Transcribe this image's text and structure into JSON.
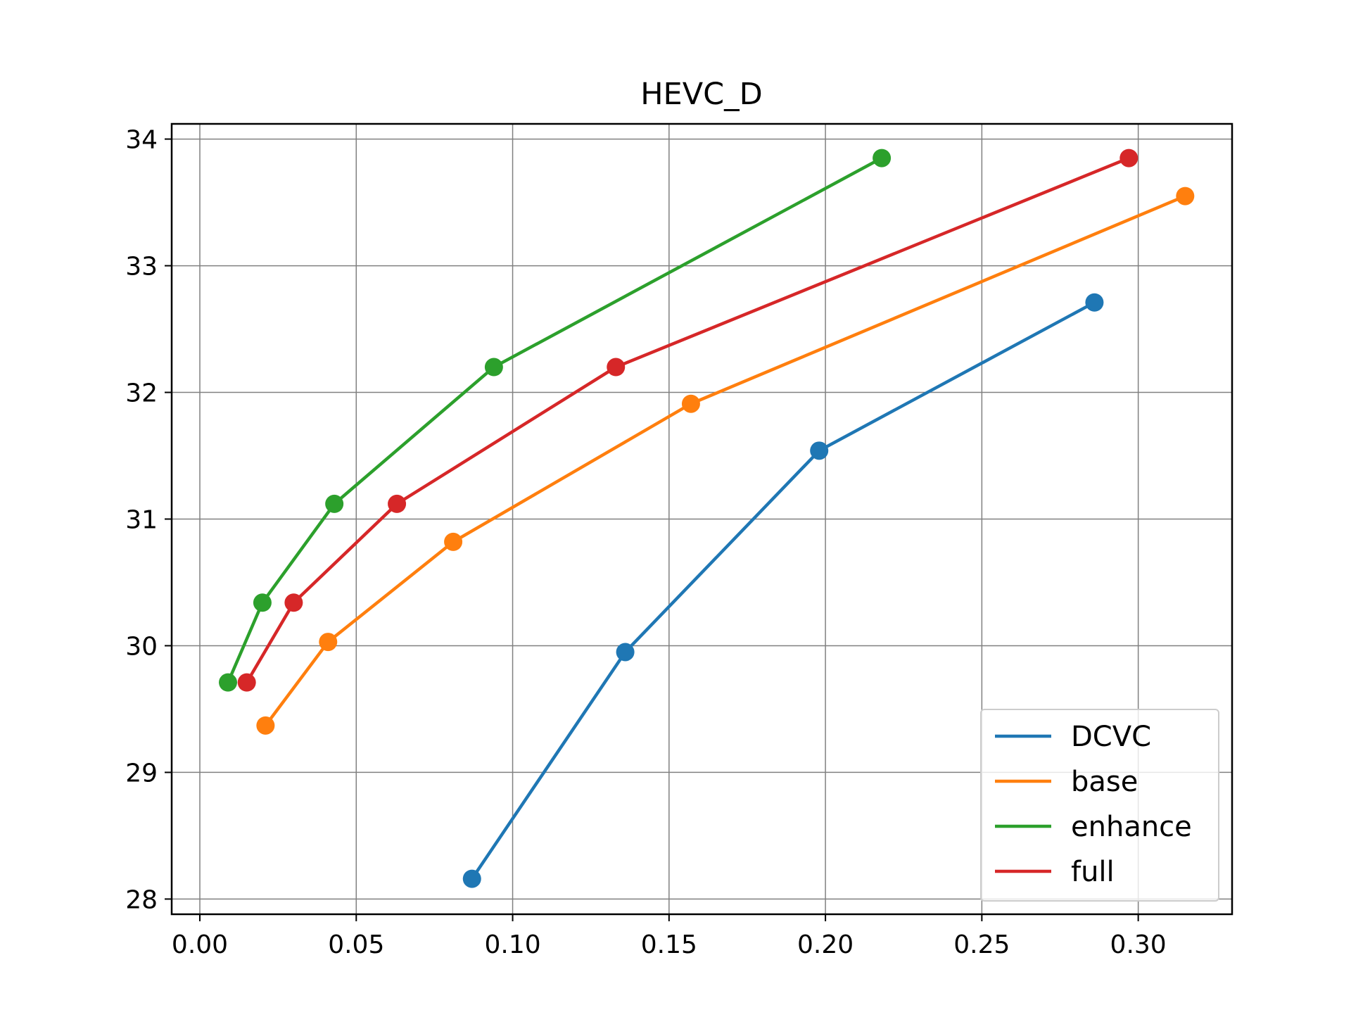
{
  "chart_data": {
    "type": "line",
    "title": "HEVC_D",
    "xlabel": "",
    "ylabel": "",
    "xlim": [
      -0.009,
      0.33
    ],
    "ylim": [
      27.88,
      34.12
    ],
    "xticks": [
      0.0,
      0.05,
      0.1,
      0.15,
      0.2,
      0.25,
      0.3
    ],
    "xtick_labels": [
      "0.00",
      "0.05",
      "0.10",
      "0.15",
      "0.20",
      "0.25",
      "0.30"
    ],
    "yticks": [
      28,
      29,
      30,
      31,
      32,
      33,
      34
    ],
    "ytick_labels": [
      "28",
      "29",
      "30",
      "31",
      "32",
      "33",
      "34"
    ],
    "grid": true,
    "legend_position": "lower-right",
    "series": [
      {
        "name": "DCVC",
        "color": "#1f77b4",
        "x": [
          0.087,
          0.136,
          0.198,
          0.286
        ],
        "y": [
          28.16,
          29.95,
          31.54,
          32.71
        ]
      },
      {
        "name": "base",
        "color": "#ff7f0e",
        "x": [
          0.021,
          0.041,
          0.081,
          0.157,
          0.315
        ],
        "y": [
          29.37,
          30.03,
          30.82,
          31.91,
          33.55
        ]
      },
      {
        "name": "enhance",
        "color": "#2ca02c",
        "x": [
          0.009,
          0.02,
          0.043,
          0.094,
          0.218
        ],
        "y": [
          29.71,
          30.34,
          31.12,
          32.2,
          33.85
        ]
      },
      {
        "name": "full",
        "color": "#d62728",
        "x": [
          0.015,
          0.03,
          0.063,
          0.133,
          0.297
        ],
        "y": [
          29.71,
          30.34,
          31.12,
          32.2,
          33.85
        ]
      }
    ]
  }
}
